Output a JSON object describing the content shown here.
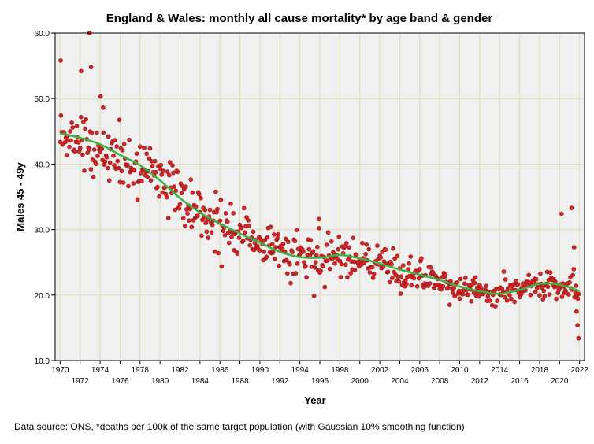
{
  "chart_data": {
    "type": "scatter",
    "title": "England & Wales: monthly all cause mortality* by age band & gender",
    "xlabel": "Year",
    "ylabel": "Males 45 - 49y",
    "footnote": "Data source: ONS, *deaths per 100k of the same target population (with Gaussian 10% smoothing function)",
    "xlim": [
      1969.5,
      2022.5
    ],
    "ylim": [
      10,
      60
    ],
    "x_ticks_upper": [
      1970,
      1974,
      1978,
      1982,
      1986,
      1990,
      1994,
      1998,
      2002,
      2006,
      2010,
      2014,
      2018,
      2022
    ],
    "x_ticks_lower": [
      1972,
      1976,
      1980,
      1984,
      1988,
      1992,
      1996,
      2000,
      2004,
      2008,
      2012,
      2016,
      2020
    ],
    "y_ticks": [
      "10.0",
      "20.0",
      "30.0",
      "40.0",
      "50.0",
      "60.0"
    ],
    "grid": true,
    "colors": {
      "plot_background": "#f0f0f0",
      "grid": "#dedcb4",
      "points": "#d62728",
      "point_edge": "#8b1010",
      "smooth_line": "#3cb443"
    },
    "series": [
      {
        "kind": "points",
        "sampling": "monthly, January 1970 to December 2021",
        "anchors": [
          [
            1970.0,
            44.5
          ],
          [
            1972.0,
            43.8
          ],
          [
            1973.0,
            43.0
          ],
          [
            1974.0,
            42.3
          ],
          [
            1975.5,
            41.5
          ],
          [
            1977.0,
            39.2
          ],
          [
            1978.0,
            40.0
          ],
          [
            1979.0,
            39.0
          ],
          [
            1980.0,
            37.5
          ],
          [
            1981.0,
            36.0
          ],
          [
            1982.0,
            35.0
          ],
          [
            1983.0,
            33.5
          ],
          [
            1984.0,
            32.5
          ],
          [
            1985.5,
            31.5
          ],
          [
            1986.0,
            31.0
          ],
          [
            1987.0,
            30.0
          ],
          [
            1988.0,
            29.0
          ],
          [
            1989.0,
            28.5
          ],
          [
            1990.0,
            28.0
          ],
          [
            1991.0,
            27.5
          ],
          [
            1992.0,
            26.8
          ],
          [
            1993.0,
            26.2
          ],
          [
            1994.0,
            25.8
          ],
          [
            1995.0,
            25.6
          ],
          [
            1996.0,
            25.8
          ],
          [
            1997.0,
            26.0
          ],
          [
            1998.0,
            26.0
          ],
          [
            1999.0,
            25.7
          ],
          [
            2000.0,
            25.5
          ],
          [
            2001.0,
            25.0
          ],
          [
            2002.0,
            24.5
          ],
          [
            2003.0,
            24.0
          ],
          [
            2004.0,
            23.5
          ],
          [
            2005.0,
            23.0
          ],
          [
            2006.0,
            22.8
          ],
          [
            2007.0,
            22.3
          ],
          [
            2008.0,
            22.0
          ],
          [
            2009.0,
            21.6
          ],
          [
            2010.0,
            21.2
          ],
          [
            2011.0,
            21.0
          ],
          [
            2012.0,
            20.6
          ],
          [
            2013.0,
            20.4
          ],
          [
            2014.0,
            20.5
          ],
          [
            2015.0,
            20.8
          ],
          [
            2016.0,
            21.2
          ],
          [
            2017.0,
            21.7
          ],
          [
            2018.0,
            21.8
          ],
          [
            2019.0,
            21.8
          ],
          [
            2020.0,
            21.5
          ],
          [
            2021.0,
            21.0
          ],
          [
            2022.0,
            20.8
          ]
        ],
        "noise": [
          4.2,
          1.6
        ],
        "extremes": [
          [
            1970.05,
            55.8
          ],
          [
            1972.1,
            54.2
          ],
          [
            1972.95,
            60.0
          ],
          [
            1973.1,
            54.8
          ],
          [
            1974.05,
            50.3
          ],
          [
            1974.3,
            48.6
          ],
          [
            1995.9,
            31.6
          ],
          [
            2020.2,
            32.4
          ],
          [
            2021.2,
            33.3
          ],
          [
            2021.45,
            27.3
          ],
          [
            2021.7,
            17.5
          ],
          [
            2021.8,
            15.4
          ],
          [
            2021.9,
            13.4
          ]
        ]
      },
      {
        "kind": "smoothed",
        "x": [
          1970.0,
          1972.0,
          1974.0,
          1976.0,
          1978.0,
          1980.0,
          1982.0,
          1984.0,
          1986.0,
          1988.0,
          1990.0,
          1992.0,
          1994.0,
          1996.0,
          1998.0,
          2000.0,
          2002.0,
          2004.0,
          2006.0,
          2008.0,
          2010.0,
          2012.0,
          2014.0,
          2016.0,
          2018.0,
          2020.0,
          2022.0
        ],
        "values": [
          44.7,
          44.0,
          43.0,
          41.4,
          39.8,
          37.5,
          34.8,
          32.6,
          30.9,
          29.4,
          28.0,
          26.6,
          25.8,
          25.7,
          26.1,
          25.6,
          24.8,
          23.9,
          23.1,
          22.3,
          21.3,
          20.6,
          20.2,
          20.8,
          21.7,
          21.6,
          20.6
        ]
      }
    ]
  }
}
